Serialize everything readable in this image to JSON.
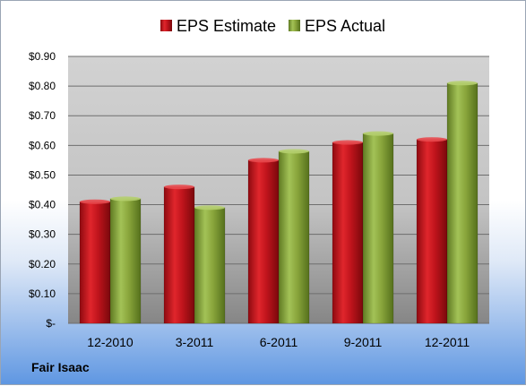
{
  "company": "Fair Isaac",
  "chart_data": {
    "type": "bar",
    "title": "",
    "xlabel": "",
    "ylabel": "",
    "categories": [
      "12-2010",
      "3-2011",
      "6-2011",
      "9-2011",
      "12-2011"
    ],
    "series": [
      {
        "name": "EPS Estimate",
        "values": [
          0.41,
          0.46,
          0.55,
          0.61,
          0.62
        ],
        "color": "#c0141c"
      },
      {
        "name": "EPS Actual",
        "values": [
          0.42,
          0.39,
          0.58,
          0.64,
          0.81
        ],
        "color": "#8aa63c"
      }
    ],
    "ylim": [
      0,
      0.9
    ],
    "yticks": [
      0,
      0.1,
      0.2,
      0.3,
      0.4,
      0.5,
      0.6,
      0.7,
      0.8,
      0.9
    ],
    "ytick_labels": [
      "$-",
      "$0.10",
      "$0.20",
      "$0.30",
      "$0.40",
      "$0.50",
      "$0.60",
      "$0.70",
      "$0.80",
      "$0.90"
    ],
    "grid": true,
    "legend_position": "top-center"
  }
}
